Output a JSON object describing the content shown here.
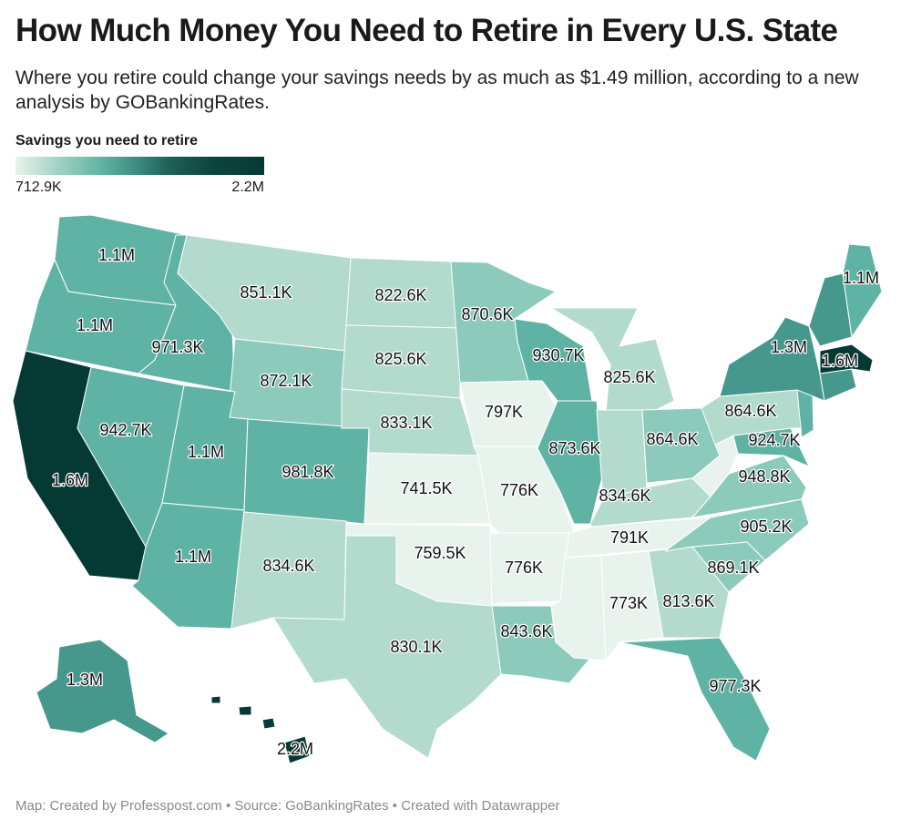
{
  "title": "How Much Money You Need to Retire in Every U.S. State",
  "subtitle": "Where you retire could change your savings needs by as much as $1.49 million, according to a new analysis by GOBankingRates.",
  "legend": {
    "title": "Savings you need to retire",
    "min": "712.9K",
    "max": "2.2M"
  },
  "footer": {
    "map_credit": "Map: Created by Professpost.com",
    "source": "• Source: GoBankingRates",
    "tool": "• Created with Datawrapper"
  },
  "colors": {
    "lightest": "#e9f3ee",
    "light": "#b2dacd",
    "mid_light": "#8ccbbb",
    "mid": "#5fb3a5",
    "mid_dark": "#46988d",
    "dark": "#0a4a43",
    "darkest": "#053a34"
  },
  "states": {
    "wa": "1.1M",
    "or": "1.1M",
    "ca": "1.6M",
    "id": "971.3K",
    "nv": "942.7K",
    "mt": "851.1K",
    "wy": "872.1K",
    "ut": "1.1M",
    "az": "1.1M",
    "co": "981.8K",
    "nm": "834.6K",
    "nd": "822.6K",
    "sd": "825.6K",
    "ne": "833.1K",
    "ks": "741.5K",
    "ok": "759.5K",
    "tx": "830.1K",
    "mn": "870.6K",
    "ia": "797K",
    "mo": "776K",
    "ar": "776K",
    "la": "843.6K",
    "wi": "930.7K",
    "il": "873.6K",
    "mi": "825.6K",
    "in_oh": "864.6K",
    "ky": "834.6K",
    "tn": "791K",
    "ms": "773K",
    "al": "813.6K",
    "ga": "813.6K",
    "fl": "977.3K",
    "sc": "869.1K",
    "nc": "905.2K",
    "va": "948.8K",
    "pa": "864.6K",
    "nj_de": "924.7K",
    "ny": "1.3M",
    "me": "1.1M",
    "ma": "1.6M",
    "ak": "1.3M",
    "hi": "2.2M"
  }
}
